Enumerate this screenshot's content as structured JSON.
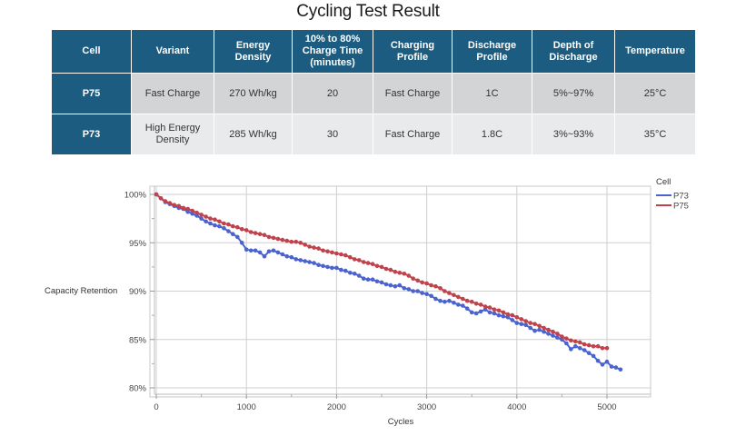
{
  "title": "Cycling Test Result",
  "table": {
    "headers": [
      "Cell",
      "Variant",
      "Energy Density",
      "10% to 80% Charge Time (minutes)",
      "Charging Profile",
      "Discharge Profile",
      "Depth of Discharge",
      "Temperature"
    ],
    "header_lines": [
      [
        "Cell"
      ],
      [
        "Variant"
      ],
      [
        "Energy Density"
      ],
      [
        "10% to 80%",
        "Charge Time",
        "(minutes)"
      ],
      [
        "Charging",
        "Profile"
      ],
      [
        "Discharge",
        "Profile"
      ],
      [
        "Depth of",
        "Discharge"
      ],
      [
        "Temperature"
      ]
    ],
    "rows": [
      {
        "cell": "P75",
        "variant": "Fast Charge",
        "energy_density": "270 Wh/kg",
        "charge_time": "20",
        "charging_profile": "Fast Charge",
        "discharge_profile": "1C",
        "depth_of_discharge": "5%~97%",
        "temperature": "25°C"
      },
      {
        "cell": "P73",
        "variant": "High Energy Density",
        "energy_density": "285 Wh/kg",
        "charge_time": "30",
        "charging_profile": "Fast Charge",
        "discharge_profile": "1.8C",
        "depth_of_discharge": "3%~93%",
        "temperature": "35°C"
      }
    ],
    "colors": {
      "header_bg": "#1b5c80",
      "row1_bg": "#d3d4d6",
      "row2_bg": "#e9eaeb"
    }
  },
  "chart_data": {
    "type": "line",
    "title": "",
    "xlabel": "Cycles",
    "ylabel": "Capacity Retention",
    "xlim": [
      -50,
      5500
    ],
    "ylim": [
      79.3,
      100.9
    ],
    "xticks": [
      0,
      1000,
      2000,
      3000,
      4000,
      5000
    ],
    "xtick_labels": [
      "0",
      "1000",
      "2000",
      "3000",
      "4000",
      "5000"
    ],
    "yticks": [
      80,
      85,
      90,
      95,
      100
    ],
    "ytick_labels": [
      "80%",
      "85%",
      "90%",
      "95%",
      "100%"
    ],
    "grid": true,
    "legend": {
      "title": "Cell",
      "placement": "top-right-outside",
      "entries": [
        "P73",
        "P75"
      ]
    },
    "series": [
      {
        "name": "P73",
        "color": "#4a63d0",
        "x": [
          0,
          50,
          100,
          150,
          200,
          250,
          300,
          350,
          400,
          450,
          500,
          550,
          600,
          650,
          700,
          750,
          800,
          850,
          900,
          950,
          1000,
          1050,
          1100,
          1150,
          1200,
          1250,
          1300,
          1350,
          1400,
          1450,
          1500,
          1550,
          1600,
          1650,
          1700,
          1750,
          1800,
          1850,
          1900,
          1950,
          2000,
          2050,
          2100,
          2150,
          2200,
          2250,
          2300,
          2350,
          2400,
          2450,
          2500,
          2550,
          2600,
          2650,
          2700,
          2750,
          2800,
          2850,
          2900,
          2950,
          3000,
          3050,
          3100,
          3150,
          3200,
          3250,
          3300,
          3350,
          3400,
          3450,
          3500,
          3550,
          3600,
          3650,
          3700,
          3750,
          3800,
          3850,
          3900,
          3950,
          4000,
          4050,
          4100,
          4150,
          4200,
          4250,
          4300,
          4350,
          4400,
          4450,
          4500,
          4550,
          4600,
          4650,
          4700,
          4750,
          4800,
          4850,
          4900,
          4950,
          5000,
          5050,
          5100,
          5150
        ],
        "values": [
          100,
          99.6,
          99.2,
          99.0,
          98.8,
          98.6,
          98.5,
          98.2,
          98.0,
          97.8,
          97.5,
          97.2,
          97.0,
          96.8,
          96.7,
          96.5,
          96.2,
          95.9,
          95.6,
          95.0,
          94.3,
          94.2,
          94.2,
          94.0,
          93.6,
          94.1,
          94.2,
          94.0,
          93.8,
          93.6,
          93.5,
          93.3,
          93.2,
          93.1,
          93.0,
          92.9,
          92.7,
          92.6,
          92.5,
          92.4,
          92.4,
          92.2,
          92.1,
          91.9,
          91.8,
          91.6,
          91.3,
          91.2,
          91.2,
          91.0,
          90.9,
          90.7,
          90.6,
          90.5,
          90.6,
          90.3,
          90.2,
          90.0,
          90.0,
          89.8,
          89.7,
          89.5,
          89.2,
          89.0,
          88.9,
          89.0,
          88.8,
          88.6,
          88.5,
          88.2,
          87.8,
          87.7,
          87.9,
          88.1,
          87.8,
          87.7,
          87.5,
          87.4,
          87.3,
          87.0,
          86.7,
          86.6,
          86.5,
          86.2,
          85.9,
          86.0,
          85.8,
          85.6,
          85.4,
          85.2,
          85.0,
          84.6,
          84.0,
          84.3,
          84.1,
          83.9,
          83.6,
          83.3,
          82.8,
          82.4,
          82.7,
          82.2,
          82.1,
          81.9
        ]
      },
      {
        "name": "P75",
        "color": "#c0424b",
        "x": [
          0,
          50,
          100,
          150,
          200,
          250,
          300,
          350,
          400,
          450,
          500,
          550,
          600,
          650,
          700,
          750,
          800,
          850,
          900,
          950,
          1000,
          1050,
          1100,
          1150,
          1200,
          1250,
          1300,
          1350,
          1400,
          1450,
          1500,
          1550,
          1600,
          1650,
          1700,
          1750,
          1800,
          1850,
          1900,
          1950,
          2000,
          2050,
          2100,
          2150,
          2200,
          2250,
          2300,
          2350,
          2400,
          2450,
          2500,
          2550,
          2600,
          2650,
          2700,
          2750,
          2800,
          2850,
          2900,
          2950,
          3000,
          3050,
          3100,
          3150,
          3200,
          3250,
          3300,
          3350,
          3400,
          3450,
          3500,
          3550,
          3600,
          3650,
          3700,
          3750,
          3800,
          3850,
          3900,
          3950,
          4000,
          4050,
          4100,
          4150,
          4200,
          4250,
          4300,
          4350,
          4400,
          4450,
          4500,
          4550,
          4600,
          4650,
          4700,
          4750,
          4800,
          4850,
          4900,
          4950,
          5000
        ],
        "values": [
          100,
          99.6,
          99.3,
          99.1,
          98.9,
          98.8,
          98.6,
          98.5,
          98.3,
          98.1,
          97.9,
          97.7,
          97.5,
          97.4,
          97.2,
          97.0,
          96.9,
          96.7,
          96.6,
          96.4,
          96.3,
          96.1,
          96.0,
          95.9,
          95.8,
          95.6,
          95.5,
          95.4,
          95.3,
          95.2,
          95.1,
          95.1,
          95.0,
          94.8,
          94.6,
          94.5,
          94.4,
          94.2,
          94.1,
          94.0,
          93.9,
          93.8,
          93.7,
          93.5,
          93.3,
          93.2,
          93.0,
          92.9,
          92.8,
          92.6,
          92.5,
          92.3,
          92.2,
          92.0,
          91.9,
          91.8,
          91.6,
          91.3,
          91.1,
          90.9,
          90.8,
          90.6,
          90.5,
          90.3,
          90.0,
          89.8,
          89.6,
          89.4,
          89.2,
          89.0,
          88.9,
          88.7,
          88.6,
          88.4,
          88.3,
          88.1,
          88.0,
          87.8,
          87.6,
          87.5,
          87.3,
          87.1,
          86.9,
          86.7,
          86.6,
          86.4,
          86.2,
          86.0,
          85.8,
          85.6,
          85.3,
          85.1,
          84.9,
          84.8,
          84.7,
          84.5,
          84.4,
          84.3,
          84.3,
          84.1,
          84.1
        ]
      }
    ]
  }
}
